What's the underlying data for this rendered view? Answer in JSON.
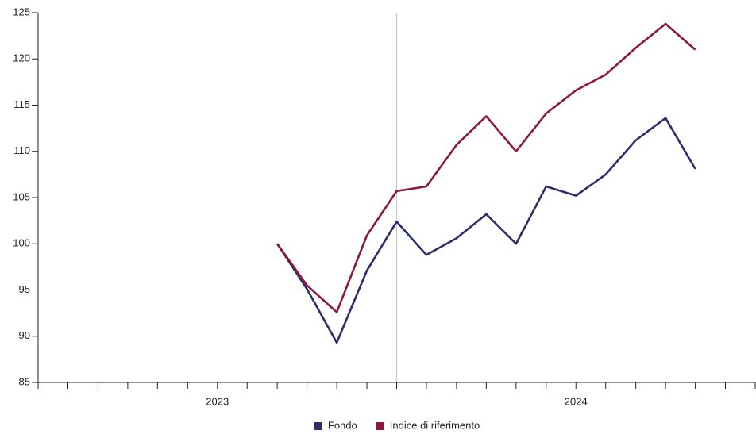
{
  "chart_data": {
    "type": "line",
    "x": [
      2023.667,
      2023.75,
      2023.833,
      2023.917,
      2024.0,
      2024.083,
      2024.167,
      2024.25,
      2024.333,
      2024.417,
      2024.5,
      2024.583,
      2024.667,
      2024.75,
      2024.833
    ],
    "series": [
      {
        "name": "Fondo",
        "color": "#2e2d6b",
        "values": [
          100,
          95.1,
          89.3,
          97.1,
          102.4,
          98.8,
          100.6,
          103.2,
          100.0,
          106.2,
          105.2,
          107.5,
          111.2,
          113.6,
          108.1
        ]
      },
      {
        "name": "Indice di riferimento",
        "color": "#8b1a3a",
        "values": [
          100,
          95.5,
          92.6,
          100.9,
          105.7,
          106.2,
          110.7,
          113.8,
          110.0,
          114.1,
          116.6,
          118.3,
          121.2,
          123.8,
          121.0
        ]
      }
    ],
    "xlim": [
      2023,
      2025
    ],
    "xticks": [
      2023,
      2023.083,
      2023.167,
      2023.25,
      2023.333,
      2023.417,
      2023.5,
      2023.583,
      2023.667,
      2023.75,
      2023.833,
      2023.917,
      2024,
      2024.083,
      2024.167,
      2024.25,
      2024.333,
      2024.417,
      2024.5,
      2024.583,
      2024.667,
      2024.75,
      2024.833,
      2024.917,
      2025
    ],
    "xlabels": [
      {
        "value": 2023.5,
        "label": "2023"
      },
      {
        "value": 2024.5,
        "label": "2024"
      }
    ],
    "x_marker": 2024,
    "ylim": [
      85,
      125
    ],
    "yticks": [
      85,
      90,
      95,
      100,
      105,
      110,
      115,
      120,
      125
    ],
    "legend": "bottom"
  }
}
